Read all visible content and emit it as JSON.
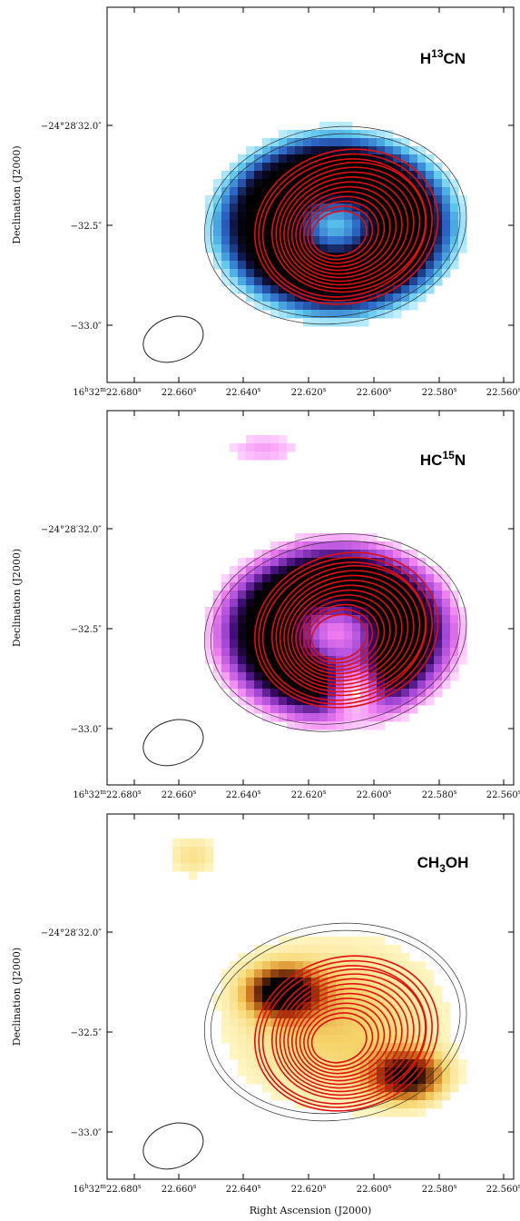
{
  "chart_data": [
    {
      "type": "heatmap",
      "molecule": "H13CN",
      "label_main": "H",
      "label_sup": "13",
      "label_end": "CN",
      "colormap": "cyan-blue-black",
      "colors": [
        "#bfefff",
        "#5bc6ee",
        "#2b63c4",
        "#10103a",
        "#000000"
      ],
      "ra_ticks": [
        "16h32m22.680s",
        "22.660s",
        "22.640s",
        "22.620s",
        "22.600s",
        "22.580s",
        "22.560s"
      ],
      "ra_first_tick": {
        "a": "16",
        "b": "h",
        "c": "32",
        "d": "m",
        "e": "22.680",
        "f": "s"
      },
      "ra_ticks_rest": [
        "22.660",
        "22.640",
        "22.620",
        "22.600",
        "22.580",
        "22.560"
      ],
      "dec_ticks": [
        "−24°28′32.0″",
        "−32.5″",
        "−33.0″"
      ],
      "ylabel": "Declination (J2000)",
      "xlabel": "",
      "emission": {
        "center_ra": 22.618,
        "center_dec": -32.5,
        "peak": "ring",
        "peak_ring_radius_arcsec": 0.3
      },
      "contour_source": {
        "center_ra": 22.613,
        "center_dec": -32.5,
        "n_levels": 14
      },
      "beam": {
        "ra": 22.668,
        "dec": -33.07
      }
    },
    {
      "type": "heatmap",
      "molecule": "HC15N",
      "label_main": "HC",
      "label_sup": "15",
      "label_end": "N",
      "colormap": "pink-purple-black",
      "colors": [
        "#ffd6ff",
        "#f07cf0",
        "#a64ad8",
        "#3a0a6e",
        "#000000"
      ],
      "ra_ticks": [
        "16h32m22.680s",
        "22.660s",
        "22.640s",
        "22.620s",
        "22.600s",
        "22.580s",
        "22.560s"
      ],
      "ra_first_tick": {
        "a": "16",
        "b": "h",
        "c": "32",
        "d": "m",
        "e": "22.680",
        "f": "s"
      },
      "ra_ticks_rest": [
        "22.660",
        "22.640",
        "22.620",
        "22.600",
        "22.580",
        "22.560"
      ],
      "dec_ticks": [
        "−24°28′32.0″",
        "−32.5″",
        "−33.0″"
      ],
      "ylabel": "Declination (J2000)",
      "xlabel": "",
      "emission": {
        "center_ra": 22.618,
        "center_dec": -32.52,
        "peak": "ring-gap-south",
        "peak_ring_radius_arcsec": 0.3
      },
      "contour_source": {
        "center_ra": 22.613,
        "center_dec": -32.5,
        "n_levels": 14
      },
      "beam": {
        "ra": 22.668,
        "dec": -33.07
      }
    },
    {
      "type": "heatmap",
      "molecule": "CH3OH",
      "label_main": "CH",
      "label_sub": "3",
      "label_end": "OH",
      "colormap": "yellow-orange-black",
      "colors": [
        "#fff6c4",
        "#f6d36a",
        "#d07a20",
        "#6e2a08",
        "#000000"
      ],
      "ra_ticks": [
        "16h32m22.680s",
        "22.660s",
        "22.640s",
        "22.620s",
        "22.600s",
        "22.580s",
        "22.560s"
      ],
      "ra_first_tick": {
        "a": "16",
        "b": "h",
        "c": "32",
        "d": "m",
        "e": "22.680",
        "f": "s"
      },
      "ra_ticks_rest": [
        "22.660",
        "22.640",
        "22.620",
        "22.600",
        "22.580",
        "22.560"
      ],
      "dec_ticks": [
        "−24°28′32.0″",
        "−32.5″",
        "−33.0″"
      ],
      "ylabel": "Declination (J2000)",
      "xlabel": "Right Ascension (J2000)",
      "emission": {
        "blobs": [
          {
            "ra": 22.634,
            "dec": -32.3,
            "peak": 1.0
          },
          {
            "ra": 22.596,
            "dec": -32.72,
            "peak": 0.9
          }
        ]
      },
      "contour_source": {
        "center_ra": 22.613,
        "center_dec": -32.5,
        "n_levels": 14
      },
      "beam": {
        "ra": 22.668,
        "dec": -33.07
      }
    }
  ]
}
